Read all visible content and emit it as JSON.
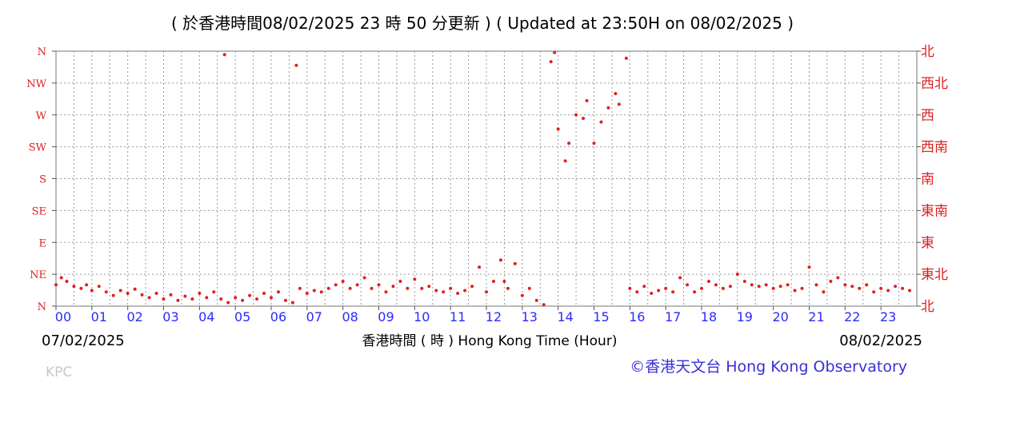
{
  "chart_data": {
    "type": "scatter",
    "title": "( 於香港時間08/02/2025 23 時 50 分更新 ) ( Updated at 23:50H on 08/02/2025 )",
    "xlabel": "香港時間 ( 時 )  Hong Kong Time (Hour)",
    "x_ticks": [
      "00",
      "01",
      "02",
      "03",
      "04",
      "05",
      "06",
      "07",
      "08",
      "09",
      "10",
      "11",
      "12",
      "13",
      "14",
      "15",
      "16",
      "17",
      "18",
      "19",
      "20",
      "21",
      "22",
      "23"
    ],
    "y_ticks_left": [
      "N",
      "NE",
      "E",
      "SE",
      "S",
      "SW",
      "W",
      "NW",
      "N"
    ],
    "y_ticks_right": [
      "北",
      "東北",
      "東",
      "東南",
      "南",
      "西南",
      "西",
      "西北",
      "北"
    ],
    "xlim": [
      0,
      24
    ],
    "ylim": [
      0,
      360
    ],
    "grid": true,
    "start_date": "07/02/2025",
    "end_date": "08/02/2025",
    "credit": "©香港天文台 Hong Kong Observatory",
    "watermark": "KPC",
    "point_color": "#e02020",
    "series": [
      {
        "values": [
          [
            0.0,
            30
          ],
          [
            0.15,
            40
          ],
          [
            0.3,
            35
          ],
          [
            0.5,
            28
          ],
          [
            0.7,
            25
          ],
          [
            0.85,
            30
          ],
          [
            1.0,
            22
          ],
          [
            1.2,
            28
          ],
          [
            1.4,
            20
          ],
          [
            1.6,
            15
          ],
          [
            1.8,
            22
          ],
          [
            2.0,
            18
          ],
          [
            2.2,
            24
          ],
          [
            2.4,
            16
          ],
          [
            2.6,
            12
          ],
          [
            2.8,
            18
          ],
          [
            3.0,
            10
          ],
          [
            3.2,
            16
          ],
          [
            3.4,
            8
          ],
          [
            3.6,
            14
          ],
          [
            3.8,
            10
          ],
          [
            4.0,
            18
          ],
          [
            4.2,
            12
          ],
          [
            4.4,
            20
          ],
          [
            4.6,
            10
          ],
          [
            4.7,
            355
          ],
          [
            4.8,
            5
          ],
          [
            5.0,
            12
          ],
          [
            5.2,
            8
          ],
          [
            5.4,
            15
          ],
          [
            5.6,
            10
          ],
          [
            5.8,
            18
          ],
          [
            6.0,
            12
          ],
          [
            6.2,
            20
          ],
          [
            6.4,
            8
          ],
          [
            6.6,
            5
          ],
          [
            6.7,
            340
          ],
          [
            6.8,
            25
          ],
          [
            7.0,
            18
          ],
          [
            7.2,
            22
          ],
          [
            7.4,
            20
          ],
          [
            7.6,
            25
          ],
          [
            7.8,
            30
          ],
          [
            8.0,
            35
          ],
          [
            8.2,
            25
          ],
          [
            8.4,
            30
          ],
          [
            8.6,
            40
          ],
          [
            8.8,
            25
          ],
          [
            9.0,
            30
          ],
          [
            9.2,
            20
          ],
          [
            9.4,
            28
          ],
          [
            9.6,
            35
          ],
          [
            9.8,
            25
          ],
          [
            10.0,
            38
          ],
          [
            10.2,
            25
          ],
          [
            10.4,
            28
          ],
          [
            10.6,
            22
          ],
          [
            10.8,
            20
          ],
          [
            11.0,
            25
          ],
          [
            11.2,
            18
          ],
          [
            11.4,
            22
          ],
          [
            11.6,
            28
          ],
          [
            11.8,
            55
          ],
          [
            12.0,
            20
          ],
          [
            12.2,
            35
          ],
          [
            12.4,
            65
          ],
          [
            12.5,
            35
          ],
          [
            12.6,
            25
          ],
          [
            12.8,
            60
          ],
          [
            13.0,
            15
          ],
          [
            13.2,
            25
          ],
          [
            13.4,
            8
          ],
          [
            13.6,
            2
          ],
          [
            13.8,
            345
          ],
          [
            13.9,
            358
          ],
          [
            14.0,
            250
          ],
          [
            14.2,
            205
          ],
          [
            14.3,
            230
          ],
          [
            14.5,
            270
          ],
          [
            14.7,
            265
          ],
          [
            14.8,
            290
          ],
          [
            15.0,
            230
          ],
          [
            15.2,
            260
          ],
          [
            15.4,
            280
          ],
          [
            15.6,
            300
          ],
          [
            15.7,
            285
          ],
          [
            15.9,
            350
          ],
          [
            16.0,
            25
          ],
          [
            16.2,
            20
          ],
          [
            16.4,
            28
          ],
          [
            16.6,
            18
          ],
          [
            16.8,
            22
          ],
          [
            17.0,
            25
          ],
          [
            17.2,
            20
          ],
          [
            17.4,
            40
          ],
          [
            17.6,
            30
          ],
          [
            17.8,
            20
          ],
          [
            18.0,
            25
          ],
          [
            18.2,
            35
          ],
          [
            18.4,
            30
          ],
          [
            18.6,
            25
          ],
          [
            18.8,
            28
          ],
          [
            19.0,
            45
          ],
          [
            19.2,
            35
          ],
          [
            19.4,
            30
          ],
          [
            19.6,
            28
          ],
          [
            19.8,
            30
          ],
          [
            20.0,
            25
          ],
          [
            20.2,
            28
          ],
          [
            20.4,
            30
          ],
          [
            20.6,
            22
          ],
          [
            20.8,
            25
          ],
          [
            21.0,
            55
          ],
          [
            21.2,
            30
          ],
          [
            21.4,
            20
          ],
          [
            21.6,
            35
          ],
          [
            21.8,
            40
          ],
          [
            22.0,
            30
          ],
          [
            22.2,
            28
          ],
          [
            22.4,
            25
          ],
          [
            22.6,
            30
          ],
          [
            22.8,
            20
          ],
          [
            23.0,
            25
          ],
          [
            23.2,
            22
          ],
          [
            23.4,
            28
          ],
          [
            23.6,
            25
          ],
          [
            23.8,
            22
          ]
        ]
      }
    ]
  }
}
